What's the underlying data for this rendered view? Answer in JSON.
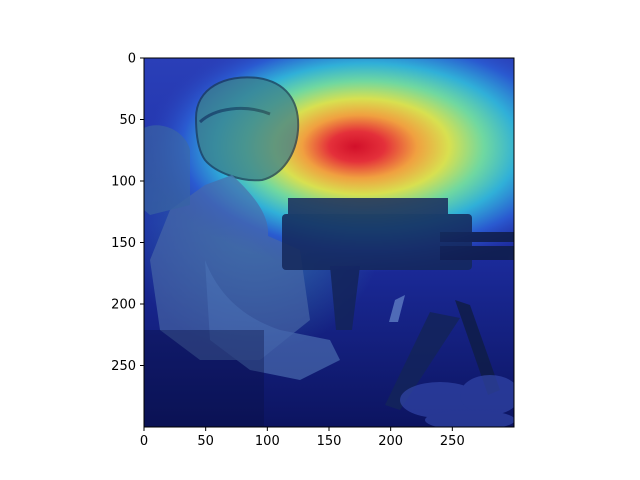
{
  "figure": {
    "image_description_hidden": "",
    "axes": {
      "x_ticks": [
        0,
        50,
        100,
        150,
        200,
        250
      ],
      "y_ticks": [
        0,
        50,
        100,
        150,
        200,
        250
      ],
      "x_range": [
        0,
        299
      ],
      "y_range": [
        0,
        299
      ],
      "y_inverted": true
    },
    "heatmap": {
      "colormap": "jet",
      "overlay_alpha": 0.5,
      "peak": {
        "x": 180,
        "y": 70,
        "level": 1.0
      }
    },
    "colors": {
      "background": "#ffffff",
      "spine": "#000000"
    }
  }
}
